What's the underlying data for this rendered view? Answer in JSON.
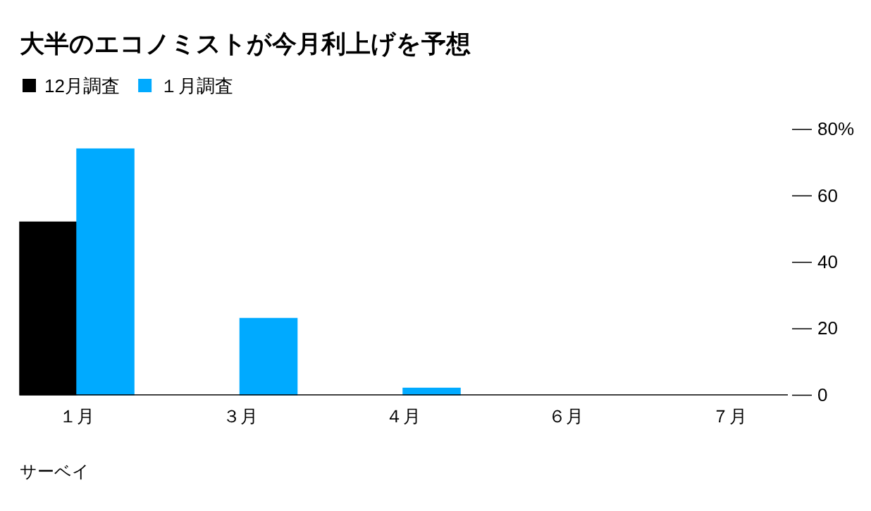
{
  "chart_data": {
    "type": "bar",
    "title": "大半のエコノミストが今月利上げを予想",
    "categories": [
      "１月",
      "３月",
      "４月",
      "６月",
      "７月"
    ],
    "series": [
      {
        "name": "12月調査",
        "color": "#000000",
        "values": [
          52,
          0,
          0,
          0,
          0
        ]
      },
      {
        "name": "１月調査",
        "color": "#00aaff",
        "values": [
          74,
          23,
          2,
          0,
          0
        ]
      }
    ],
    "ylim": [
      0,
      80
    ],
    "yticks": [
      0,
      20,
      40,
      60,
      {
        "value": 80,
        "label": "80%"
      }
    ],
    "legend": "top left",
    "annotations": [
      "サーベイ"
    ]
  }
}
